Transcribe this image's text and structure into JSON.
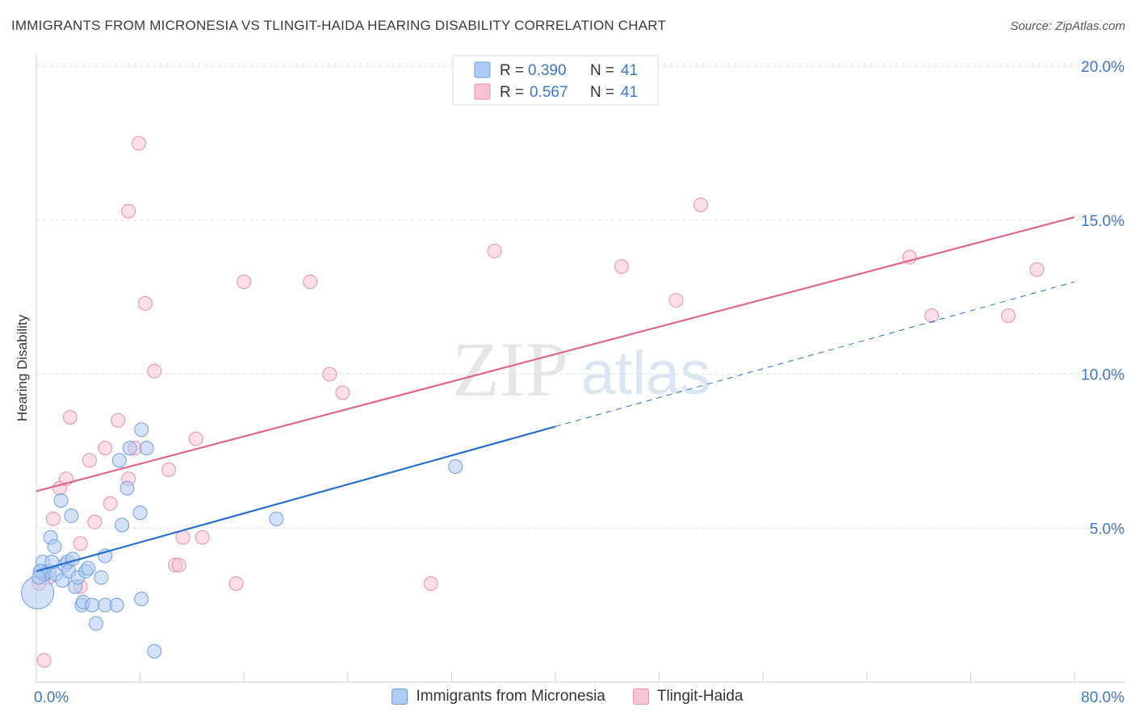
{
  "title": "IMMIGRANTS FROM MICRONESIA VS TLINGIT-HAIDA HEARING DISABILITY CORRELATION CHART",
  "source": "Source: ZipAtlas.com",
  "watermark": {
    "zip": "ZIP",
    "atlas": "atlas"
  },
  "colors": {
    "blue_fill": "#aecbf3",
    "blue_stroke": "#6f9fe0",
    "blue_line": "#2570d0",
    "pink_fill": "#f7c3d4",
    "pink_stroke": "#e690ae",
    "pink_line": "#e0658f",
    "axis_label": "#3b78c8",
    "grid": "#dedede"
  },
  "legend_top": [
    {
      "r_label": "R = ",
      "r_value": "0.390",
      "n_label": "N = ",
      "n_value": "41"
    },
    {
      "r_label": "R = ",
      "r_value": "0.567",
      "n_label": "N = ",
      "n_value": "41"
    }
  ],
  "legend_bottom": [
    "Immigrants from Micronesia",
    "Tlingit-Haida"
  ],
  "chart_data": {
    "type": "scatter",
    "title": "IMMIGRANTS FROM MICRONESIA VS TLINGIT-HAIDA HEARING DISABILITY CORRELATION CHART",
    "xlabel": "",
    "ylabel": "Hearing Disability",
    "xlim": [
      0,
      80
    ],
    "ylim": [
      0,
      20.5
    ],
    "x_tick_labels": [
      "0.0%",
      "80.0%"
    ],
    "y_ticks": [
      5,
      10,
      15,
      20
    ],
    "y_tick_labels": [
      "5.0%",
      "10.0%",
      "15.0%",
      "20.0%"
    ],
    "grid": true,
    "series": [
      {
        "name": "Immigrants from Micronesia",
        "R": 0.39,
        "N": 41,
        "points": [
          [
            0.1,
            2.9
          ],
          [
            0.4,
            3.6
          ],
          [
            0.5,
            3.9
          ],
          [
            0.6,
            3.5
          ],
          [
            1.0,
            3.6
          ],
          [
            1.1,
            4.7
          ],
          [
            1.2,
            3.9
          ],
          [
            1.4,
            4.4
          ],
          [
            1.5,
            3.5
          ],
          [
            1.9,
            5.9
          ],
          [
            2.0,
            3.3
          ],
          [
            2.2,
            3.8
          ],
          [
            2.4,
            3.9
          ],
          [
            2.5,
            3.6
          ],
          [
            2.7,
            5.4
          ],
          [
            2.8,
            4.0
          ],
          [
            3.0,
            3.1
          ],
          [
            3.2,
            3.4
          ],
          [
            3.5,
            2.5
          ],
          [
            3.6,
            2.6
          ],
          [
            3.8,
            3.6
          ],
          [
            4.0,
            3.7
          ],
          [
            4.3,
            2.5
          ],
          [
            4.6,
            1.9
          ],
          [
            5.0,
            3.4
          ],
          [
            5.3,
            4.1
          ],
          [
            5.3,
            2.5
          ],
          [
            6.2,
            2.5
          ],
          [
            6.4,
            7.2
          ],
          [
            6.6,
            5.1
          ],
          [
            7.0,
            6.3
          ],
          [
            7.2,
            7.6
          ],
          [
            8.0,
            5.5
          ],
          [
            8.1,
            2.7
          ],
          [
            8.1,
            8.2
          ],
          [
            8.5,
            7.6
          ],
          [
            9.1,
            1.0
          ],
          [
            18.5,
            5.3
          ],
          [
            32.3,
            7.0
          ],
          [
            0.3,
            3.6
          ],
          [
            0.2,
            3.4
          ]
        ],
        "trend": {
          "x": [
            0,
            40,
            80
          ],
          "y": [
            3.6,
            8.3,
            13.0
          ],
          "solid_to_x": 40
        }
      },
      {
        "name": "Tlingit-Haida",
        "R": 0.567,
        "N": 41,
        "points": [
          [
            0.2,
            3.2
          ],
          [
            0.7,
            3.5
          ],
          [
            1.0,
            3.4
          ],
          [
            1.3,
            5.3
          ],
          [
            1.8,
            6.3
          ],
          [
            2.3,
            6.6
          ],
          [
            2.6,
            8.6
          ],
          [
            3.4,
            3.1
          ],
          [
            3.4,
            4.5
          ],
          [
            4.1,
            7.2
          ],
          [
            4.5,
            5.2
          ],
          [
            5.3,
            7.6
          ],
          [
            5.7,
            5.8
          ],
          [
            6.3,
            8.5
          ],
          [
            7.1,
            15.3
          ],
          [
            7.1,
            6.6
          ],
          [
            7.6,
            7.6
          ],
          [
            7.9,
            17.5
          ],
          [
            8.4,
            12.3
          ],
          [
            9.1,
            10.1
          ],
          [
            10.2,
            6.9
          ],
          [
            10.7,
            3.8
          ],
          [
            11.0,
            3.8
          ],
          [
            11.3,
            4.7
          ],
          [
            12.3,
            7.9
          ],
          [
            12.8,
            4.7
          ],
          [
            15.4,
            3.2
          ],
          [
            16.0,
            13.0
          ],
          [
            21.1,
            13.0
          ],
          [
            22.6,
            10.0
          ],
          [
            23.6,
            9.4
          ],
          [
            30.4,
            3.2
          ],
          [
            35.3,
            14.0
          ],
          [
            45.1,
            13.5
          ],
          [
            49.3,
            12.4
          ],
          [
            51.2,
            15.5
          ],
          [
            67.3,
            13.8
          ],
          [
            69.0,
            11.9
          ],
          [
            74.9,
            11.9
          ],
          [
            77.1,
            13.4
          ],
          [
            0.6,
            0.7
          ]
        ],
        "trend": {
          "x": [
            0,
            80
          ],
          "y": [
            6.2,
            15.1
          ]
        }
      }
    ]
  }
}
